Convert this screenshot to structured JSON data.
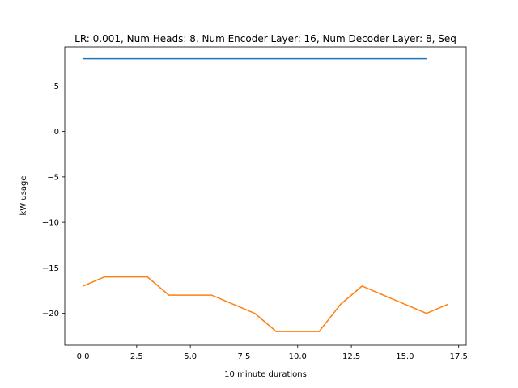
{
  "chart_data": {
    "type": "line",
    "title": "LR: 0.001, Num Heads: 8, Num Encoder Layer: 16, Num Decoder Layer: 8, Seq",
    "xlabel": "10 minute durations",
    "ylabel": "kW usage",
    "xlim": [
      -0.85,
      17.85
    ],
    "ylim": [
      -23.5,
      9.3
    ],
    "grid": false,
    "x_ticks": [
      0.0,
      2.5,
      5.0,
      7.5,
      10.0,
      12.5,
      15.0,
      17.5
    ],
    "x_tick_labels": [
      "0.0",
      "2.5",
      "5.0",
      "7.5",
      "10.0",
      "12.5",
      "15.0",
      "17.5"
    ],
    "y_ticks": [
      5,
      0,
      -5,
      -10,
      -15,
      -20
    ],
    "y_tick_labels": [
      "5",
      "0",
      "−5",
      "−10",
      "−15",
      "−20"
    ],
    "series": [
      {
        "color": "#1f77b4",
        "x": [
          0,
          1,
          2,
          3,
          4,
          5,
          6,
          7,
          8,
          9,
          10,
          11,
          12,
          13,
          14,
          15,
          16
        ],
        "y": [
          8,
          8,
          8,
          8,
          8,
          8,
          8,
          8,
          8,
          8,
          8,
          8,
          8,
          8,
          8,
          8,
          8
        ]
      },
      {
        "color": "#ff7f0e",
        "x": [
          0,
          1,
          2,
          3,
          4,
          5,
          6,
          7,
          8,
          9,
          10,
          11,
          12,
          13,
          14,
          15,
          16,
          17
        ],
        "y": [
          -17,
          -16,
          -16,
          -16,
          -18,
          -18,
          -18,
          -19,
          -20,
          -22,
          -22,
          -22,
          -19,
          -17,
          -18,
          -19,
          -20,
          -19
        ]
      }
    ]
  }
}
